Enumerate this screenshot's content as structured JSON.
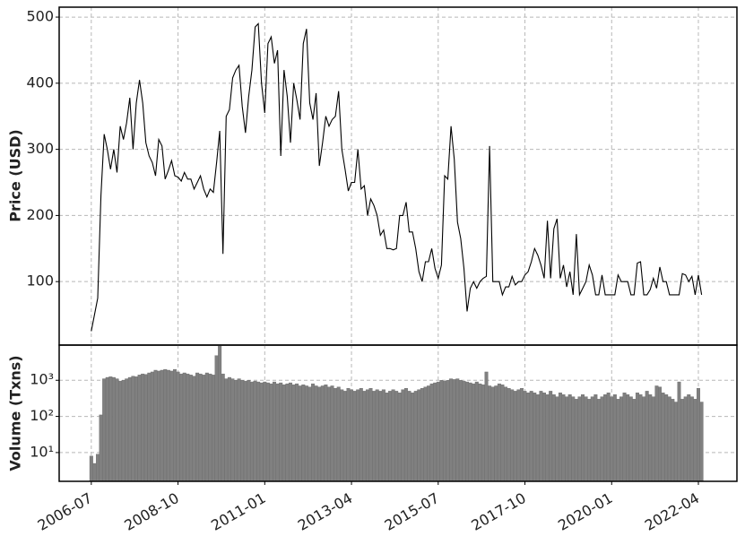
{
  "chart_data": [
    {
      "type": "line",
      "ylabel": "Price (USD)",
      "color": "#000000",
      "grid": true,
      "xlim": [
        "2005-09",
        "2023-04"
      ],
      "ylim": [
        4,
        515
      ],
      "yticks": [
        100,
        200,
        300,
        400,
        500
      ],
      "x": [
        "2006-07",
        "2006-08",
        "2006-09",
        "2006-10",
        "2006-11",
        "2006-12",
        "2007-01",
        "2007-02",
        "2007-03",
        "2007-04",
        "2007-05",
        "2007-06",
        "2007-07",
        "2007-08",
        "2007-09",
        "2007-10",
        "2007-11",
        "2007-12",
        "2008-01",
        "2008-02",
        "2008-03",
        "2008-04",
        "2008-05",
        "2008-06",
        "2008-07",
        "2008-08",
        "2008-09",
        "2008-10",
        "2008-11",
        "2008-12",
        "2009-01",
        "2009-02",
        "2009-03",
        "2009-04",
        "2009-05",
        "2009-06",
        "2009-07",
        "2009-08",
        "2009-09",
        "2009-10",
        "2009-11",
        "2009-12",
        "2010-01",
        "2010-02",
        "2010-03",
        "2010-04",
        "2010-05",
        "2010-06",
        "2010-07",
        "2010-08",
        "2010-09",
        "2010-10",
        "2010-11",
        "2010-12",
        "2011-01",
        "2011-02",
        "2011-03",
        "2011-04",
        "2011-05",
        "2011-06",
        "2011-07",
        "2011-08",
        "2011-09",
        "2011-10",
        "2011-11",
        "2011-12",
        "2012-01",
        "2012-02",
        "2012-03",
        "2012-04",
        "2012-05",
        "2012-06",
        "2012-07",
        "2012-08",
        "2012-09",
        "2012-10",
        "2012-11",
        "2012-12",
        "2013-01",
        "2013-02",
        "2013-03",
        "2013-04",
        "2013-05",
        "2013-06",
        "2013-07",
        "2013-08",
        "2013-09",
        "2013-10",
        "2013-11",
        "2013-12",
        "2014-01",
        "2014-02",
        "2014-03",
        "2014-04",
        "2014-05",
        "2014-06",
        "2014-07",
        "2014-08",
        "2014-09",
        "2014-10",
        "2014-11",
        "2014-12",
        "2015-01",
        "2015-02",
        "2015-03",
        "2015-04",
        "2015-05",
        "2015-06",
        "2015-07",
        "2015-08",
        "2015-09",
        "2015-10",
        "2015-11",
        "2015-12",
        "2016-01",
        "2016-02",
        "2016-03",
        "2016-04",
        "2016-05",
        "2016-06",
        "2016-07",
        "2016-08",
        "2016-09",
        "2016-10",
        "2016-11",
        "2016-12",
        "2017-01",
        "2017-02",
        "2017-03",
        "2017-04",
        "2017-05",
        "2017-06",
        "2017-07",
        "2017-08",
        "2017-09",
        "2017-10",
        "2017-11",
        "2017-12",
        "2018-01",
        "2018-02",
        "2018-03",
        "2018-04",
        "2018-05",
        "2018-06",
        "2018-07",
        "2018-08",
        "2018-09",
        "2018-10",
        "2018-11",
        "2018-12",
        "2019-01",
        "2019-02",
        "2019-03",
        "2019-04",
        "2019-05",
        "2019-06",
        "2019-07",
        "2019-08",
        "2019-09",
        "2019-10",
        "2019-11",
        "2019-12",
        "2020-01",
        "2020-02",
        "2020-03",
        "2020-04",
        "2020-05",
        "2020-06",
        "2020-07",
        "2020-08",
        "2020-09",
        "2020-10",
        "2020-11",
        "2020-12",
        "2021-01",
        "2021-02",
        "2021-03",
        "2021-04",
        "2021-05",
        "2021-06",
        "2021-07",
        "2021-08",
        "2021-09",
        "2021-10",
        "2021-11",
        "2021-12",
        "2022-01",
        "2022-02",
        "2022-03",
        "2022-04",
        "2022-05"
      ],
      "values": [
        25,
        50,
        75,
        230,
        323,
        300,
        270,
        300,
        265,
        335,
        315,
        340,
        378,
        300,
        370,
        405,
        370,
        310,
        290,
        280,
        260,
        315,
        305,
        255,
        268,
        283,
        260,
        258,
        252,
        265,
        255,
        255,
        240,
        250,
        260,
        240,
        228,
        240,
        235,
        280,
        328,
        142,
        350,
        360,
        408,
        420,
        427,
        365,
        325,
        380,
        420,
        485,
        490,
        400,
        355,
        460,
        470,
        430,
        450,
        290,
        420,
        380,
        310,
        400,
        375,
        345,
        460,
        482,
        370,
        345,
        385,
        275,
        310,
        350,
        335,
        345,
        350,
        388,
        300,
        270,
        237,
        250,
        250,
        300,
        240,
        245,
        200,
        225,
        215,
        200,
        170,
        178,
        150,
        150,
        148,
        150,
        200,
        200,
        220,
        175,
        175,
        150,
        115,
        100,
        130,
        130,
        150,
        120,
        105,
        125,
        260,
        255,
        335,
        285,
        190,
        165,
        120,
        55,
        90,
        100,
        90,
        100,
        105,
        108,
        305,
        100,
        100,
        100,
        80,
        92,
        92,
        108,
        95,
        100,
        100,
        110,
        115,
        130,
        150,
        140,
        125,
        105,
        192,
        105,
        180,
        195,
        105,
        125,
        92,
        115,
        80,
        172,
        80,
        90,
        100,
        125,
        110,
        80,
        80,
        110,
        80,
        80,
        80,
        80,
        110,
        100,
        100,
        100,
        80,
        80,
        128,
        130,
        80,
        80,
        88,
        105,
        90,
        122,
        100,
        100,
        80,
        80,
        80,
        80,
        112,
        110,
        100,
        108,
        80,
        110,
        80
      ]
    },
    {
      "type": "bar",
      "ylabel": "Volume (Txns)",
      "color": "#808080",
      "grid": true,
      "log_scale": true,
      "xlim": [
        "2005-09",
        "2023-04"
      ],
      "ylim": [
        1.6,
        9400
      ],
      "yticks": [
        {
          "value": 10,
          "label": "10¹"
        },
        {
          "value": 100,
          "label": "10²"
        },
        {
          "value": 1000,
          "label": "10³"
        }
      ],
      "xticks": [
        "2006-07",
        "2008-10",
        "2011-01",
        "2013-04",
        "2015-07",
        "2017-10",
        "2020-01",
        "2022-04"
      ],
      "x": [
        "2006-07",
        "2006-08",
        "2006-09",
        "2006-10",
        "2006-11",
        "2006-12",
        "2007-01",
        "2007-02",
        "2007-03",
        "2007-04",
        "2007-05",
        "2007-06",
        "2007-07",
        "2007-08",
        "2007-09",
        "2007-10",
        "2007-11",
        "2007-12",
        "2008-01",
        "2008-02",
        "2008-03",
        "2008-04",
        "2008-05",
        "2008-06",
        "2008-07",
        "2008-08",
        "2008-09",
        "2008-10",
        "2008-11",
        "2008-12",
        "2009-01",
        "2009-02",
        "2009-03",
        "2009-04",
        "2009-05",
        "2009-06",
        "2009-07",
        "2009-08",
        "2009-09",
        "2009-10",
        "2009-11",
        "2009-12",
        "2010-01",
        "2010-02",
        "2010-03",
        "2010-04",
        "2010-05",
        "2010-06",
        "2010-07",
        "2010-08",
        "2010-09",
        "2010-10",
        "2010-11",
        "2010-12",
        "2011-01",
        "2011-02",
        "2011-03",
        "2011-04",
        "2011-05",
        "2011-06",
        "2011-07",
        "2011-08",
        "2011-09",
        "2011-10",
        "2011-11",
        "2011-12",
        "2012-01",
        "2012-02",
        "2012-03",
        "2012-04",
        "2012-05",
        "2012-06",
        "2012-07",
        "2012-08",
        "2012-09",
        "2012-10",
        "2012-11",
        "2012-12",
        "2013-01",
        "2013-02",
        "2013-03",
        "2013-04",
        "2013-05",
        "2013-06",
        "2013-07",
        "2013-08",
        "2013-09",
        "2013-10",
        "2013-11",
        "2013-12",
        "2014-01",
        "2014-02",
        "2014-03",
        "2014-04",
        "2014-05",
        "2014-06",
        "2014-07",
        "2014-08",
        "2014-09",
        "2014-10",
        "2014-11",
        "2014-12",
        "2015-01",
        "2015-02",
        "2015-03",
        "2015-04",
        "2015-05",
        "2015-06",
        "2015-07",
        "2015-08",
        "2015-09",
        "2015-10",
        "2015-11",
        "2015-12",
        "2016-01",
        "2016-02",
        "2016-03",
        "2016-04",
        "2016-05",
        "2016-06",
        "2016-07",
        "2016-08",
        "2016-09",
        "2016-10",
        "2016-11",
        "2016-12",
        "2017-01",
        "2017-02",
        "2017-03",
        "2017-04",
        "2017-05",
        "2017-06",
        "2017-07",
        "2017-08",
        "2017-09",
        "2017-10",
        "2017-11",
        "2017-12",
        "2018-01",
        "2018-02",
        "2018-03",
        "2018-04",
        "2018-05",
        "2018-06",
        "2018-07",
        "2018-08",
        "2018-09",
        "2018-10",
        "2018-11",
        "2018-12",
        "2019-01",
        "2019-02",
        "2019-03",
        "2019-04",
        "2019-05",
        "2019-06",
        "2019-07",
        "2019-08",
        "2019-09",
        "2019-10",
        "2019-11",
        "2019-12",
        "2020-01",
        "2020-02",
        "2020-03",
        "2020-04",
        "2020-05",
        "2020-06",
        "2020-07",
        "2020-08",
        "2020-09",
        "2020-10",
        "2020-11",
        "2020-12",
        "2021-01",
        "2021-02",
        "2021-03",
        "2021-04",
        "2021-05",
        "2021-06",
        "2021-07",
        "2021-08",
        "2021-09",
        "2021-10",
        "2021-11",
        "2021-12",
        "2022-01",
        "2022-02",
        "2022-03",
        "2022-04",
        "2022-05"
      ],
      "values": [
        8,
        5,
        9,
        110,
        1100,
        1200,
        1250,
        1200,
        1100,
        950,
        1000,
        1100,
        1200,
        1300,
        1250,
        1400,
        1500,
        1450,
        1600,
        1700,
        1900,
        1800,
        1900,
        2000,
        1900,
        1800,
        2000,
        1700,
        1500,
        1600,
        1500,
        1400,
        1300,
        1600,
        1500,
        1400,
        1600,
        1500,
        1400,
        4800,
        9400,
        1500,
        1100,
        1200,
        1100,
        1000,
        1100,
        1000,
        950,
        1000,
        900,
        950,
        900,
        850,
        900,
        850,
        800,
        900,
        800,
        850,
        750,
        800,
        850,
        750,
        800,
        700,
        750,
        700,
        650,
        800,
        700,
        650,
        700,
        750,
        650,
        700,
        600,
        650,
        550,
        500,
        600,
        550,
        500,
        550,
        600,
        500,
        550,
        600,
        500,
        550,
        500,
        550,
        450,
        500,
        550,
        500,
        450,
        550,
        600,
        500,
        450,
        500,
        550,
        600,
        650,
        700,
        800,
        850,
        900,
        1000,
        950,
        1000,
        1100,
        1050,
        1100,
        1000,
        950,
        900,
        850,
        800,
        900,
        800,
        750,
        1700,
        700,
        650,
        700,
        800,
        750,
        650,
        600,
        550,
        500,
        550,
        600,
        500,
        450,
        500,
        450,
        400,
        500,
        450,
        400,
        500,
        400,
        350,
        450,
        400,
        350,
        400,
        350,
        300,
        350,
        400,
        350,
        300,
        350,
        400,
        300,
        350,
        400,
        450,
        350,
        400,
        300,
        350,
        450,
        400,
        350,
        300,
        450,
        400,
        350,
        500,
        400,
        350,
        700,
        650,
        450,
        400,
        350,
        300,
        250,
        900,
        300,
        350,
        400,
        350,
        300,
        600,
        250
      ]
    }
  ]
}
